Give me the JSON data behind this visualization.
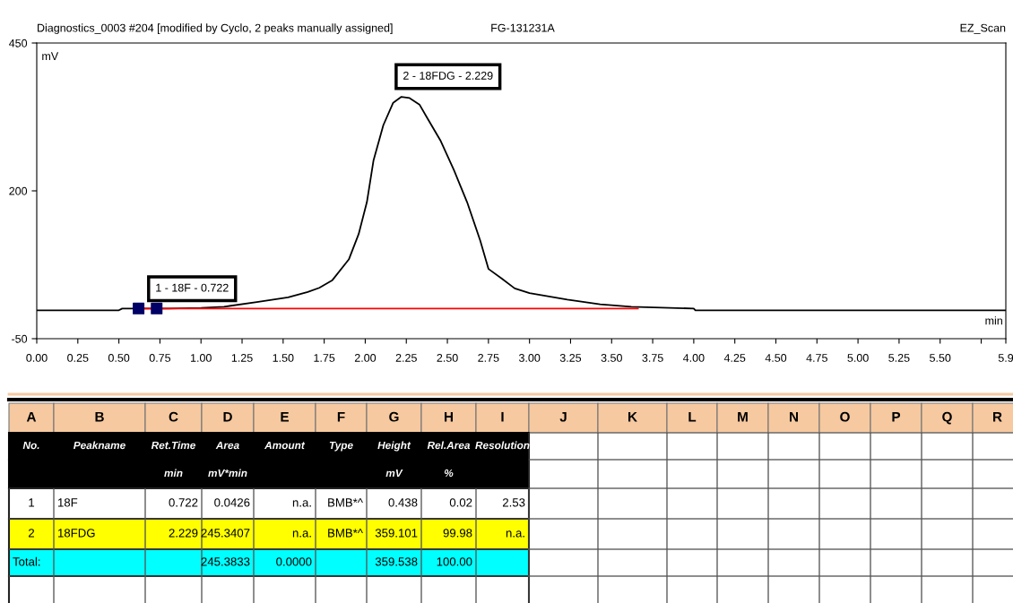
{
  "chart_data": [
    {
      "type": "line",
      "title": "Diagnostics_0003 #204 [modified by Cyclo, 2 peaks manually assigned]",
      "subtitle": "FG-131231A",
      "xlabel": "min",
      "ylabel": "mV",
      "annotations": [
        "EZ_Scan",
        {
          "text": "1 - 18F - 0.722",
          "x": 0.722,
          "y": 0.438
        },
        {
          "text": "2 - 18FDG - 2.229",
          "x": 2.229,
          "y": 359.101
        }
      ],
      "series": [
        {
          "type": "line",
          "color": "#000000",
          "x": [
            0,
            0.5,
            0.52,
            0.8,
            1.0,
            1.14,
            1.34,
            1.53,
            1.65,
            1.72,
            1.8,
            1.9,
            1.96,
            2.01,
            2.05,
            2.11,
            2.17,
            2.22,
            2.27,
            2.33,
            2.38,
            2.46,
            2.54,
            2.62,
            2.7,
            2.75,
            2.83,
            2.91,
            3.0,
            3.23,
            3.43,
            3.62,
            4.0,
            4.01,
            5.9
          ],
          "values": [
            -2,
            -2,
            1,
            1,
            2,
            4,
            12,
            20,
            29,
            36,
            49,
            84,
            127,
            181,
            251,
            311,
            349,
            359,
            357,
            346,
            322,
            284,
            235,
            181,
            116,
            68,
            52,
            35,
            27,
            16,
            8,
            4,
            1,
            -2,
            -2
          ]
        },
        {
          "type": "line",
          "color": "#ff0000",
          "x": [
            0.62,
            3.66
          ],
          "values": [
            1,
            1
          ]
        },
        {
          "type": "scatter",
          "color": "#000066",
          "marker": "square",
          "x": [
            0.62,
            0.73
          ],
          "values": [
            1,
            1
          ]
        }
      ],
      "xlim": [
        0,
        5.9
      ],
      "ylim": [
        -50,
        450
      ],
      "xticks": [
        {
          "value": 0,
          "label": "0.00"
        },
        {
          "value": 0.25,
          "label": "0.25"
        },
        {
          "value": 0.5,
          "label": "0.50"
        },
        {
          "value": 0.75,
          "label": "0.75"
        },
        {
          "value": 1,
          "label": "1.00"
        },
        {
          "value": 1.25,
          "label": "1.25"
        },
        {
          "value": 1.5,
          "label": "1.50"
        },
        {
          "value": 1.75,
          "label": "1.75"
        },
        {
          "value": 2,
          "label": "2.00"
        },
        {
          "value": 2.25,
          "label": "2.25"
        },
        {
          "value": 2.5,
          "label": "2.50"
        },
        {
          "value": 2.75,
          "label": "2.75"
        },
        {
          "value": 3,
          "label": "3.00"
        },
        {
          "value": 3.25,
          "label": "3.25"
        },
        {
          "value": 3.5,
          "label": "3.50"
        },
        {
          "value": 3.75,
          "label": "3.75"
        },
        {
          "value": 4,
          "label": "4.00"
        },
        {
          "value": 4.25,
          "label": "4.25"
        },
        {
          "value": 4.5,
          "label": "4.50"
        },
        {
          "value": 4.75,
          "label": "4.75"
        },
        {
          "value": 5,
          "label": "5.00"
        },
        {
          "value": 5.25,
          "label": "5.25"
        },
        {
          "value": 5.5,
          "label": "5.50"
        },
        {
          "value": 5.75,
          "label": null
        },
        5.9
      ],
      "yticks": [
        -50,
        200,
        450
      ]
    },
    {
      "type": "other",
      "categories": [
        "A",
        "B",
        "C",
        "D",
        "E",
        "F",
        "G",
        "H",
        "I",
        "J",
        "K",
        "L",
        "M",
        "N",
        "O",
        "P",
        "Q",
        "R"
      ],
      "cell_labels": [
        [
          "No.",
          "Peakname",
          "Ret.Time",
          "Area",
          "Amount",
          "Type",
          "Height",
          "Rel.Area",
          "Resolution"
        ],
        [
          null,
          null,
          "min",
          "mV*min",
          null,
          null,
          "mV",
          "%",
          null
        ],
        [
          "1",
          "18F",
          "0.722",
          "0.0426",
          "n.a.",
          "BMB*^",
          "0.438",
          "0.02",
          "2.53"
        ],
        [
          "2",
          "18FDG",
          "2.229",
          "245.3407",
          "n.a.",
          "BMB*^",
          "359.101",
          "99.98",
          "n.a."
        ],
        [
          "Total:",
          null,
          null,
          "245.3833",
          "0.0000",
          null,
          "359.538",
          "100.00",
          null
        ],
        [
          null,
          null,
          null,
          null,
          null,
          null,
          null,
          null,
          null
        ]
      ]
    }
  ]
}
